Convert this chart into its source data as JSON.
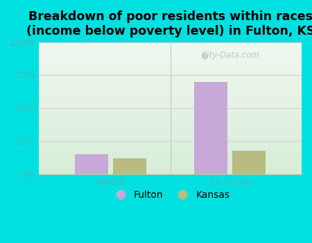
{
  "title": "Breakdown of poor residents within races\n(income below poverty level) in Fulton, KS",
  "categories": [
    "White",
    "2+ races"
  ],
  "fulton_values": [
    15,
    70
  ],
  "kansas_values": [
    12,
    18
  ],
  "fulton_color": "#c8a8d8",
  "kansas_color": "#b8bc80",
  "background_outer": "#00e0e0",
  "background_inner": "#e0f0e0",
  "title_fontsize": 12.5,
  "tick_label_color": "#44bbbb",
  "ylim": [
    0,
    100
  ],
  "yticks": [
    0,
    25,
    50,
    75,
    100
  ],
  "ytick_labels": [
    "0%",
    "25%",
    "50%",
    "75%",
    "100%"
  ],
  "legend_labels": [
    "Fulton",
    "Kansas"
  ],
  "bar_width": 0.28,
  "watermark": "City-Data.com",
  "grid_color": "#ddccdd",
  "divider_color": "#88bbaa"
}
